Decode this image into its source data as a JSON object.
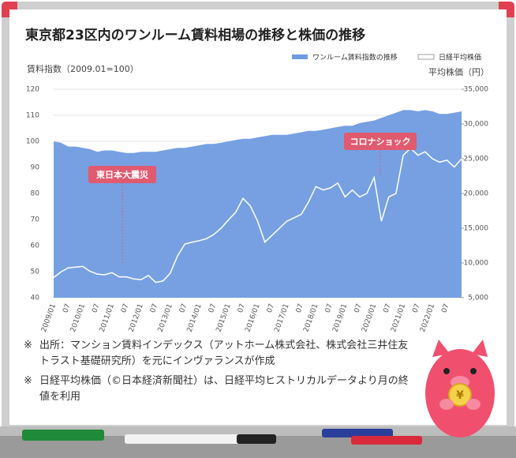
{
  "chart_data": {
    "type": "area_line",
    "title": "東京都23区内のワンルーム賃料相場の推移と株価の推移",
    "ylabel": "賃料指数（2009.01=100）",
    "y2label": "平均株価（円）",
    "categories": [
      "2009/01",
      null,
      "07",
      null,
      "2010/01",
      null,
      "07",
      null,
      "2011/01",
      null,
      "07",
      null,
      "2012/01",
      null,
      "07",
      null,
      "2013/01",
      null,
      "07",
      null,
      "2014/01",
      null,
      "07",
      null,
      "2015/01",
      null,
      "07",
      null,
      "2016/01",
      null,
      "07",
      null,
      "2017/01",
      null,
      "07",
      null,
      "2018/01",
      null,
      "07",
      null,
      "2019/01",
      null,
      "07",
      null,
      "2020/01",
      null,
      "07",
      null,
      "2021/01",
      null,
      "07",
      null,
      "2022/01",
      null,
      "07",
      null,
      null
    ],
    "series": [
      {
        "name": "ワンルーム賃料指数の推移",
        "color": "#6f9be0",
        "values": [
          100,
          99.5,
          98,
          98,
          97.5,
          97,
          96,
          96.5,
          96.5,
          96,
          95.5,
          95.5,
          96,
          96,
          96,
          96.5,
          97,
          97.5,
          97.5,
          98,
          98.5,
          99,
          99,
          99.5,
          100,
          100.5,
          101,
          101,
          101.5,
          102,
          102.5,
          102.5,
          102.5,
          103,
          103.5,
          104,
          104,
          104.5,
          105,
          105.5,
          106,
          106,
          107,
          107.5,
          108,
          109,
          110,
          111,
          112,
          112,
          111.5,
          112,
          111.5,
          110.5,
          110.5,
          111,
          111.5
        ]
      },
      {
        "name": "日経平均株価",
        "color": "#ffffff",
        "axis": "y2",
        "values": [
          7900,
          8700,
          9300,
          9400,
          9500,
          8800,
          8400,
          8300,
          8600,
          8000,
          8000,
          7700,
          7600,
          8200,
          7200,
          7400,
          8500,
          11000,
          12700,
          13000,
          13200,
          13500,
          14100,
          15000,
          16200,
          17300,
          19300,
          18200,
          16000,
          13000,
          14000,
          15000,
          16000,
          16500,
          17000,
          18800,
          21000,
          20500,
          20800,
          21500,
          19500,
          20500,
          19500,
          20000,
          22300,
          16000,
          19500,
          20000,
          25500,
          26500,
          25500,
          26000,
          25000,
          24500,
          24800,
          23800,
          25000
        ]
      }
    ],
    "ylim": [
      40,
      120
    ],
    "yticks": [
      40,
      50,
      60,
      70,
      80,
      90,
      100,
      110,
      120
    ],
    "y2lim": [
      5000,
      35000
    ],
    "y2ticks": [
      {
        "value": 5000,
        "label": "5,000"
      },
      {
        "value": 10000,
        "label": "10,000"
      },
      {
        "value": 15000,
        "label": "15,000"
      },
      {
        "value": 20000,
        "label": "20,000"
      },
      {
        "value": 25000,
        "label": "25,000"
      },
      {
        "value": 30000,
        "label": "30,000"
      },
      {
        "value": 35000,
        "label": "35,000"
      }
    ],
    "grid": true,
    "annotations": [
      "東日本大震災",
      "コロナショック"
    ]
  },
  "notes": [
    {
      "mark": "※",
      "text": "出所：マンション賃料インデックス（アットホーム株式会社、株式会社三井住友トラスト基礎研究所）を元にインヴァランスが作成"
    },
    {
      "mark": "※",
      "text": "日経平均株価（©日本経済新聞社）は、日経平均ヒストリカルデータより月の終値を利用"
    }
  ],
  "mascot": {
    "coin": "¥"
  }
}
